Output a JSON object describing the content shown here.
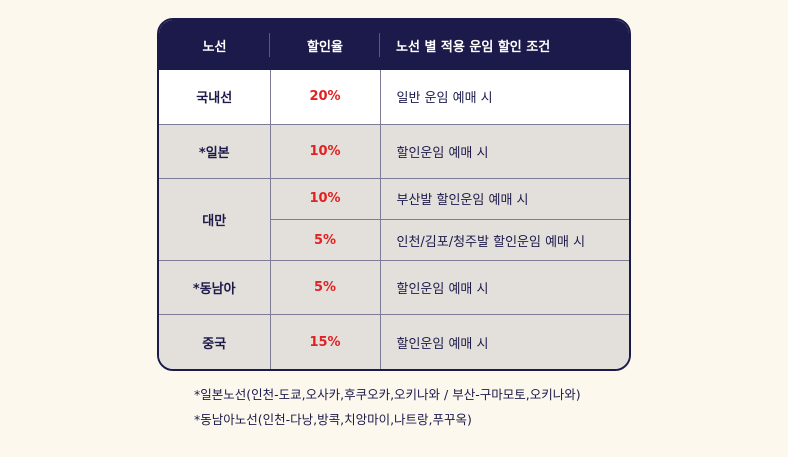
{
  "header": {
    "route": "노선",
    "rate": "할인율",
    "condition": "노선 별 적용 운임 할인 조건"
  },
  "rows": [
    {
      "route": "국내선",
      "rate": "20%",
      "condition": "일반 운임 예매 시"
    },
    {
      "route": "*일본",
      "rate": "10%",
      "condition": "할인운임 예매 시"
    },
    {
      "route": "대만",
      "sub": [
        {
          "rate": "10%",
          "condition": "부산발 할인운임 예매 시"
        },
        {
          "rate": "5%",
          "condition": "인천/김포/청주발 할인운임 예매 시"
        }
      ]
    },
    {
      "route": "*동남아",
      "rate": "5%",
      "condition": "할인운임 예매 시"
    },
    {
      "route": "중국",
      "rate": "15%",
      "condition": "할인운임 예매 시"
    }
  ],
  "notes": [
    "*일본노선(인천-도쿄,오사카,후쿠오카,오키나와 / 부산-구마모토,오키나와)",
    "*동남아노선(인천-다낭,방콕,치앙마이,나트랑,푸꾸옥)"
  ],
  "colors": {
    "header_bg": "#1c1a4a",
    "rate_text": "#e02222",
    "grey_row": "#e3dfda",
    "page_bg": "#fdf8ee"
  }
}
